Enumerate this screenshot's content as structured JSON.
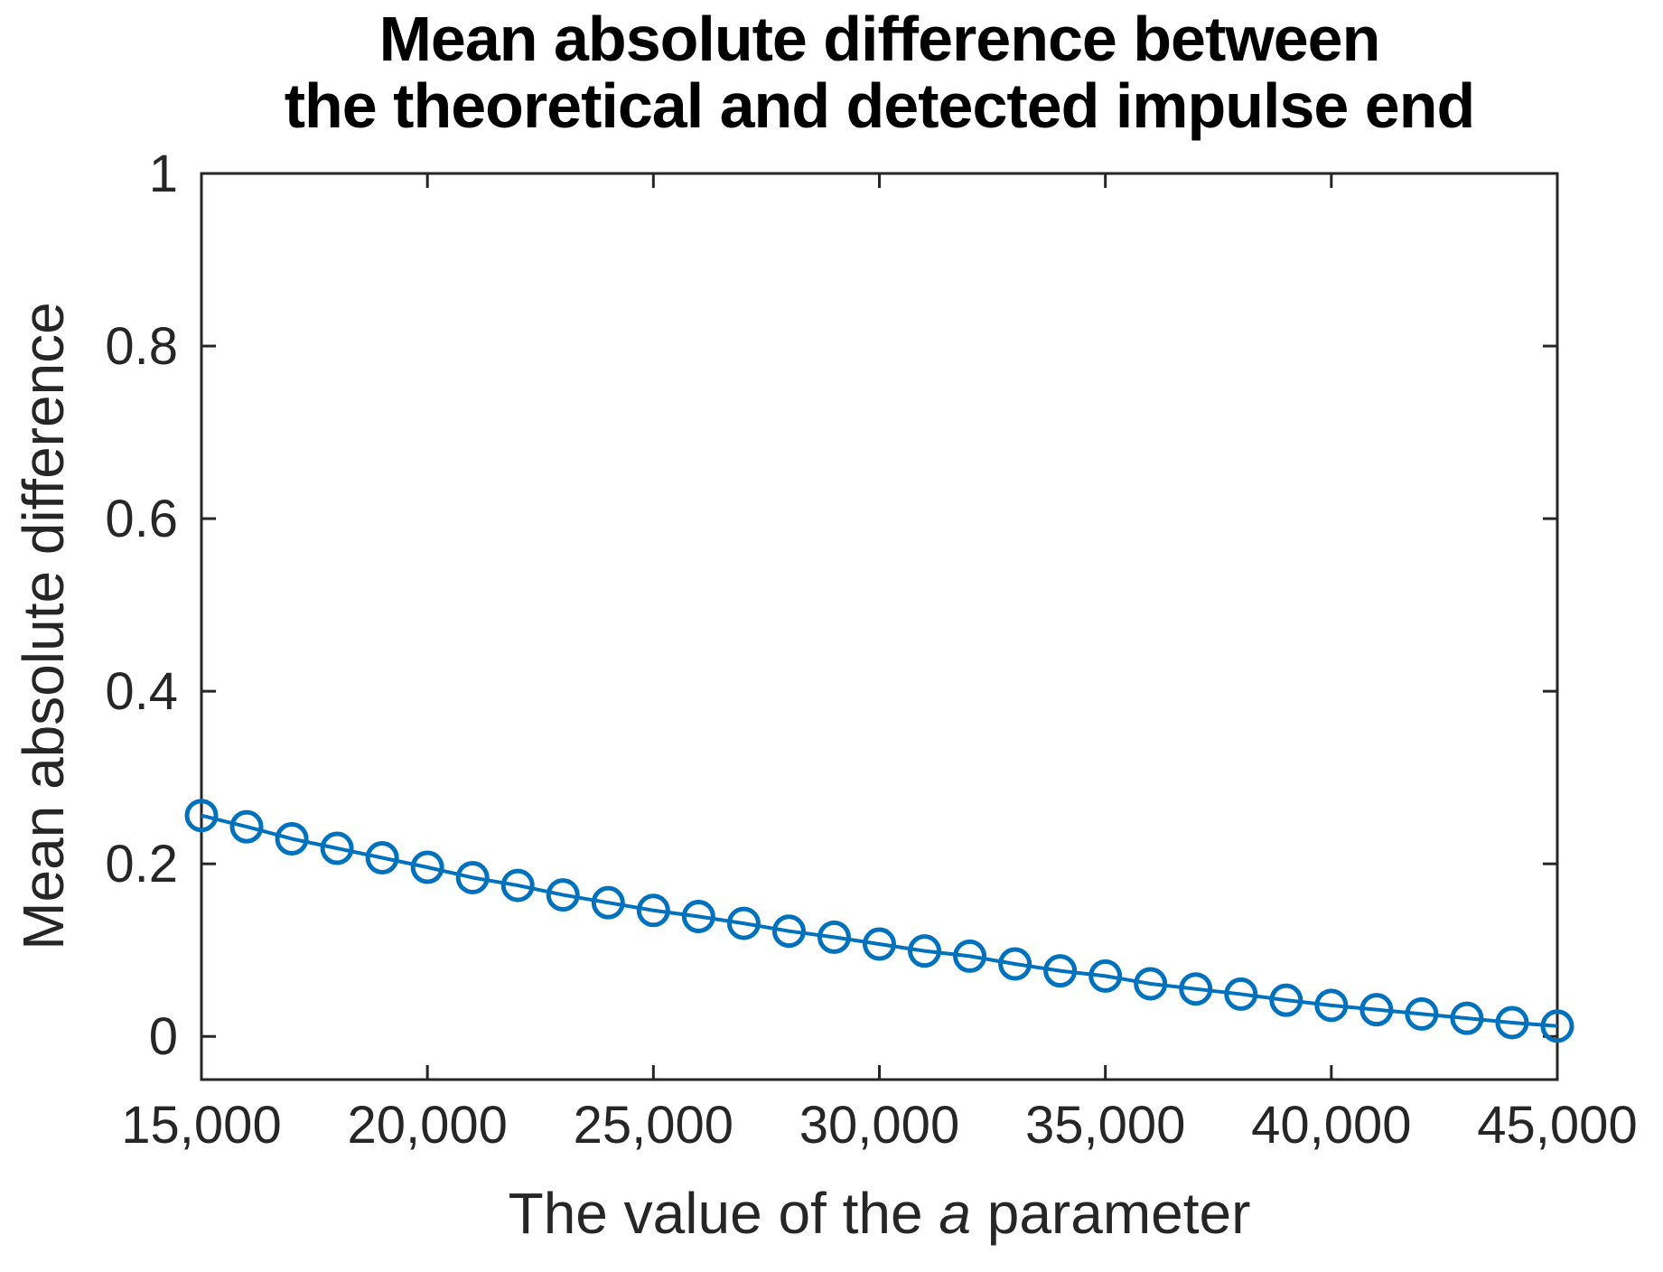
{
  "page": {
    "title_line1": "Mean absolute difference between",
    "title_line2": "the theoretical and detected impulse end",
    "xlabel_prefix": "The value of the ",
    "xlabel_italic": "a",
    "xlabel_suffix": " parameter",
    "ylabel": "Mean absolute difference"
  },
  "chart_data": {
    "type": "line",
    "title": "Mean absolute difference between the theoretical and detected impulse end",
    "xlabel": "The value of the a parameter",
    "ylabel": "Mean absolute difference",
    "series_name": "Mean absolute difference",
    "x": [
      15000,
      16000,
      17000,
      18000,
      19000,
      20000,
      21000,
      22000,
      23000,
      24000,
      25000,
      26000,
      27000,
      28000,
      29000,
      30000,
      31000,
      32000,
      33000,
      34000,
      35000,
      36000,
      37000,
      38000,
      39000,
      40000,
      41000,
      42000,
      43000,
      44000,
      45000
    ],
    "y": [
      0.256,
      0.243,
      0.229,
      0.218,
      0.207,
      0.196,
      0.184,
      0.175,
      0.164,
      0.155,
      0.146,
      0.139,
      0.131,
      0.122,
      0.115,
      0.107,
      0.099,
      0.093,
      0.084,
      0.076,
      0.07,
      0.061,
      0.055,
      0.049,
      0.042,
      0.036,
      0.031,
      0.026,
      0.021,
      0.016,
      0.012
    ],
    "xlim": [
      15000,
      45000
    ],
    "ylim": [
      -0.05,
      1.0
    ],
    "xticks": [
      15000,
      20000,
      25000,
      30000,
      35000,
      40000,
      45000
    ],
    "xtick_labels": [
      "15,000",
      "20,000",
      "25,000",
      "30,000",
      "35,000",
      "40,000",
      "45,000"
    ],
    "yticks": [
      0,
      0.2,
      0.4,
      0.6,
      0.8,
      1
    ],
    "ytick_labels": [
      "0",
      "0.2",
      "0.4",
      "0.6",
      "0.8",
      "1"
    ],
    "grid": false,
    "legend": null,
    "box": true,
    "marker": "open-circle",
    "line_color": "#0072BD",
    "axis_color": "#262626",
    "background_color": "#ffffff"
  }
}
